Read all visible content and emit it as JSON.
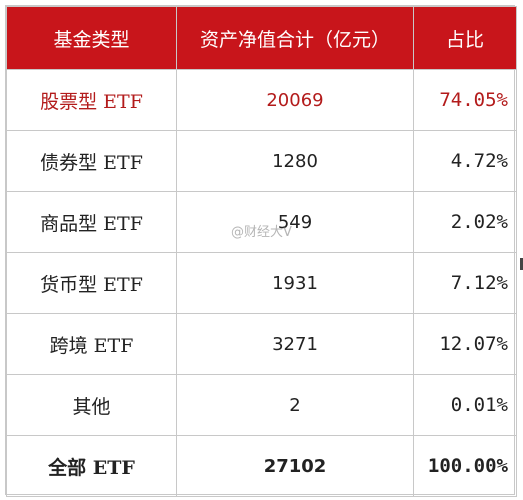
{
  "table": {
    "headers": [
      "基金类型",
      "资产净值合计（亿元）",
      "占比"
    ],
    "rows": [
      {
        "type": "股票型 ETF",
        "value": "20069",
        "share": "74.05%"
      },
      {
        "type": "债券型 ETF",
        "value": "1280",
        "share": "4.72%"
      },
      {
        "type": "商品型 ETF",
        "value": "549",
        "share": "2.02%"
      },
      {
        "type": "货币型 ETF",
        "value": "1931",
        "share": "7.12%"
      },
      {
        "type": "跨境 ETF",
        "value": "3271",
        "share": "12.07%"
      },
      {
        "type": "其他",
        "value": "2",
        "share": "0.01%"
      },
      {
        "type": "全部 ETF",
        "value": "27102",
        "share": "100.00%"
      }
    ]
  },
  "watermark": "@财经大V",
  "colors": {
    "header_bg": "#c8151b",
    "highlight_text": "#b31b1b"
  }
}
